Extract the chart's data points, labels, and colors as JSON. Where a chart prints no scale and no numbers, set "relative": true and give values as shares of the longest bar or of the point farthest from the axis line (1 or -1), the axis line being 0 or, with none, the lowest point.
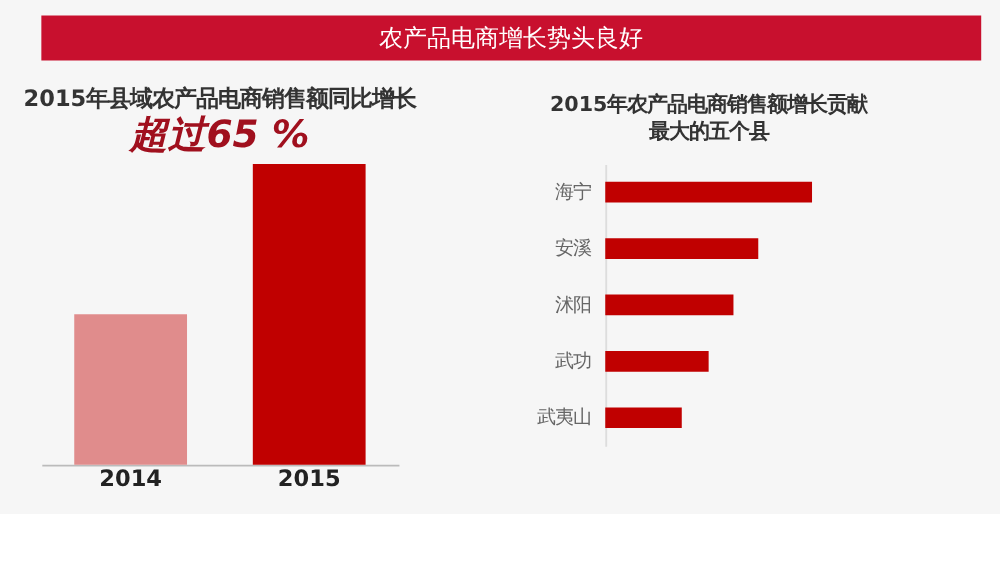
{
  "chart_data": [
    {
      "type": "other",
      "title": "农产品电商增长势头良好",
      "color": "#c8102e"
    },
    {
      "type": "bar",
      "title": "2015年县域农产品电商销售额同比增长",
      "subtitle": "超过65 %",
      "relative": true,
      "categories": [
        "2014",
        "2015"
      ],
      "values": [
        0.5,
        1
      ],
      "colors": [
        "#e08c8c",
        "#c00000"
      ]
    },
    {
      "type": "bar",
      "orientation": "horizontal",
      "title": "2015年农产品电商销售额增长贡献",
      "subtitle": "最大的五个县",
      "relative": true,
      "categories": [
        "海宁",
        "安溪",
        "沭阳",
        "武功",
        "武夷山"
      ],
      "values": [
        1,
        0.74,
        0.62,
        0.5,
        0.37
      ],
      "color": "#c00000"
    }
  ]
}
